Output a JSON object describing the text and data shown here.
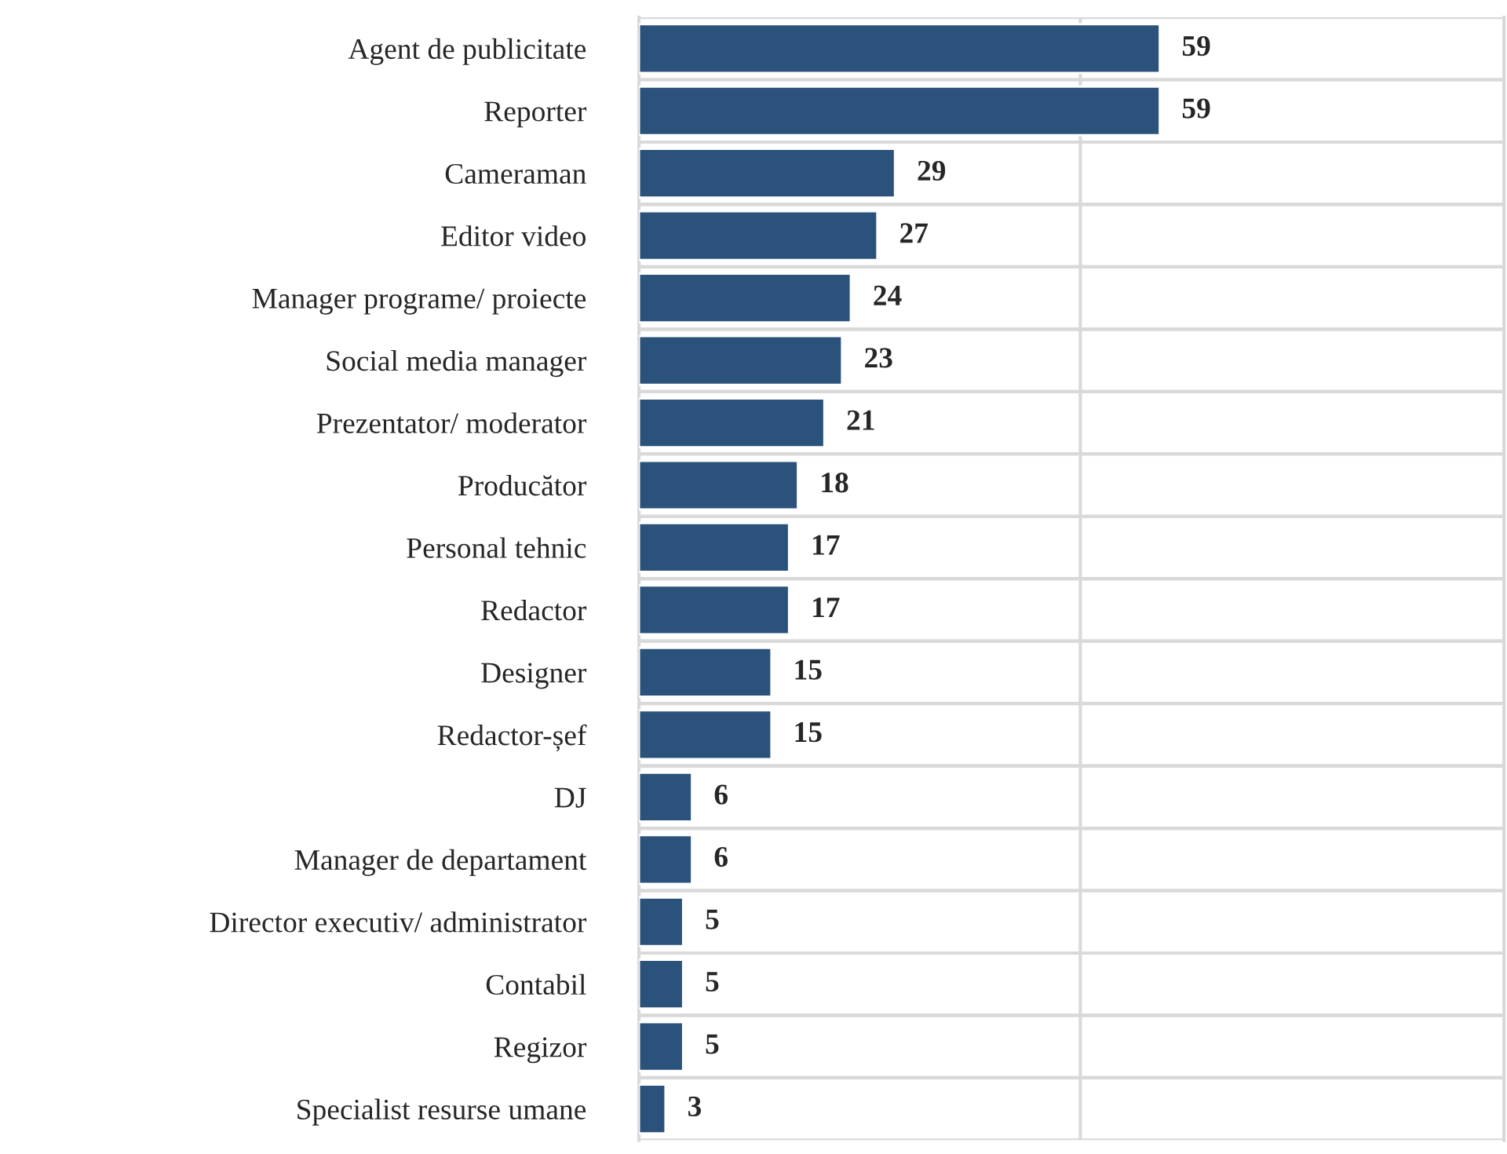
{
  "chart_data": {
    "type": "bar",
    "orientation": "horizontal",
    "categories": [
      "Agent de publicitate",
      "Reporter",
      "Cameraman",
      "Editor video",
      "Manager programe/ proiecte",
      "Social media manager",
      "Prezentator/ moderator",
      "Producător",
      "Personal tehnic",
      "Redactor",
      "Designer",
      "Redactor-șef",
      "DJ",
      "Manager de departament",
      "Director executiv/ administrator",
      "Contabil",
      "Regizor",
      "Specialist resurse umane"
    ],
    "values": [
      59,
      59,
      29,
      27,
      24,
      23,
      21,
      18,
      17,
      17,
      15,
      15,
      6,
      6,
      5,
      5,
      5,
      3
    ],
    "color": "#2a527a",
    "xlim": [
      0,
      98
    ],
    "ref_lines": [
      {
        "axis": "x",
        "value": 50,
        "color": "#d9d9d9"
      }
    ],
    "data_labels": true,
    "tick_labels": "y"
  }
}
